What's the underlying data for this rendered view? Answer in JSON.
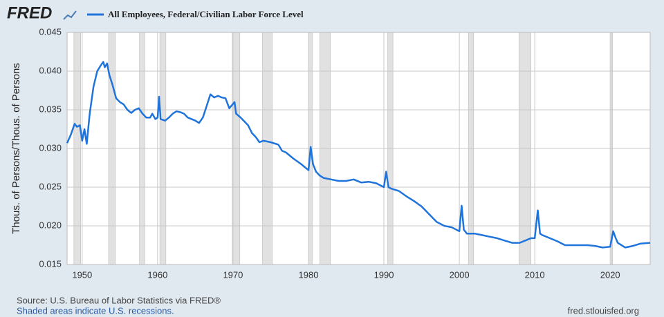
{
  "logo": "FRED",
  "chart_data": {
    "type": "line",
    "axis_label_y": "Thous. of Persons/Thous. of Persons",
    "source": "Source: U.S. Bureau of Labor Statistics via FRED®",
    "note": "Shaded areas indicate U.S. recessions.",
    "site": "fred.stlouisfed.org",
    "xlim": [
      1948,
      2025.3
    ],
    "xticks": [
      1950,
      1960,
      1970,
      1980,
      1990,
      2000,
      2010,
      2020
    ],
    "ylim": [
      0.015,
      0.045
    ],
    "yticks": [
      {
        "value": 0.015,
        "label": "0.015"
      },
      {
        "value": 0.02,
        "label": "0.020"
      },
      {
        "value": 0.025,
        "label": "0.025"
      },
      {
        "value": 0.03,
        "label": "0.030"
      },
      {
        "value": 0.035,
        "label": "0.035"
      },
      {
        "value": 0.04,
        "label": "0.040"
      },
      {
        "value": 0.045,
        "label": "0.045"
      }
    ],
    "grid": true,
    "recession_color": "#e1e1e1",
    "recessions": [
      [
        1948.9,
        1949.8
      ],
      [
        1953.5,
        1954.4
      ],
      [
        1957.6,
        1958.3
      ],
      [
        1960.3,
        1961.1
      ],
      [
        1969.9,
        1970.9
      ],
      [
        1973.9,
        1975.2
      ],
      [
        1980.0,
        1980.5
      ],
      [
        1981.5,
        1982.9
      ],
      [
        1990.5,
        1991.2
      ],
      [
        2001.2,
        2001.9
      ],
      [
        2007.9,
        2009.5
      ],
      [
        2020.1,
        2020.3
      ]
    ],
    "series": [
      {
        "name": "All Employees, Federal/Civilian Labor Force Level",
        "color": "#1f74dc",
        "x": [
          1948.0,
          1948.5,
          1949.0,
          1949.3,
          1949.7,
          1950.0,
          1950.3,
          1950.6,
          1951.0,
          1951.5,
          1952.0,
          1952.5,
          1952.8,
          1953.0,
          1953.3,
          1953.6,
          1954.0,
          1954.5,
          1955.0,
          1955.5,
          1956.0,
          1956.5,
          1957.0,
          1957.5,
          1958.0,
          1958.5,
          1959.0,
          1959.3,
          1959.7,
          1960.0,
          1960.2,
          1960.4,
          1961.0,
          1961.5,
          1962.0,
          1962.5,
          1963.0,
          1963.5,
          1964.0,
          1965.0,
          1965.5,
          1966.0,
          1966.5,
          1967.0,
          1967.5,
          1968.0,
          1968.5,
          1969.0,
          1969.5,
          1970.2,
          1970.4,
          1971.0,
          1971.5,
          1972.0,
          1972.5,
          1973.0,
          1973.5,
          1974.0,
          1975.0,
          1976.0,
          1976.5,
          1977.0,
          1978.0,
          1979.0,
          1980.0,
          1980.3,
          1980.6,
          1981.0,
          1981.5,
          1982.0,
          1983.0,
          1984.0,
          1985.0,
          1986.0,
          1987.0,
          1988.0,
          1989.0,
          1990.0,
          1990.3,
          1990.6,
          1991.0,
          1992.0,
          1993.0,
          1994.0,
          1995.0,
          1996.0,
          1997.0,
          1998.0,
          1999.0,
          2000.0,
          2000.3,
          2000.6,
          2001.0,
          2002.0,
          2003.0,
          2004.0,
          2005.0,
          2006.0,
          2007.0,
          2008.0,
          2009.0,
          2009.5,
          2010.0,
          2010.4,
          2010.7,
          2011.0,
          2012.0,
          2013.0,
          2014.0,
          2015.0,
          2016.0,
          2017.0,
          2018.0,
          2019.0,
          2020.0,
          2020.4,
          2020.7,
          2021.0,
          2022.0,
          2023.0,
          2024.0,
          2025.3
        ],
        "values": [
          0.0307,
          0.0318,
          0.0332,
          0.0328,
          0.033,
          0.031,
          0.0325,
          0.0306,
          0.0345,
          0.038,
          0.04,
          0.0408,
          0.0412,
          0.0405,
          0.041,
          0.0395,
          0.0383,
          0.0365,
          0.036,
          0.0357,
          0.035,
          0.0346,
          0.035,
          0.0352,
          0.0345,
          0.034,
          0.034,
          0.0345,
          0.0338,
          0.034,
          0.0367,
          0.0338,
          0.0336,
          0.034,
          0.0345,
          0.0348,
          0.0347,
          0.0345,
          0.034,
          0.0336,
          0.0333,
          0.034,
          0.0355,
          0.037,
          0.0366,
          0.0368,
          0.0366,
          0.0365,
          0.0352,
          0.036,
          0.0345,
          0.034,
          0.0335,
          0.033,
          0.032,
          0.0315,
          0.0308,
          0.031,
          0.0308,
          0.0305,
          0.0297,
          0.0295,
          0.0287,
          0.028,
          0.0272,
          0.0302,
          0.028,
          0.027,
          0.0265,
          0.0262,
          0.026,
          0.0258,
          0.0258,
          0.026,
          0.0256,
          0.0257,
          0.0255,
          0.025,
          0.027,
          0.025,
          0.0248,
          0.0245,
          0.0238,
          0.0232,
          0.0225,
          0.0215,
          0.0205,
          0.02,
          0.0198,
          0.0193,
          0.0226,
          0.0195,
          0.019,
          0.019,
          0.0188,
          0.0186,
          0.0184,
          0.0181,
          0.0178,
          0.0178,
          0.0182,
          0.0184,
          0.0184,
          0.022,
          0.019,
          0.0188,
          0.0184,
          0.018,
          0.0175,
          0.0175,
          0.0175,
          0.0175,
          0.0174,
          0.0172,
          0.0173,
          0.0193,
          0.0185,
          0.0178,
          0.0172,
          0.0174,
          0.0177,
          0.0178
        ]
      }
    ]
  }
}
